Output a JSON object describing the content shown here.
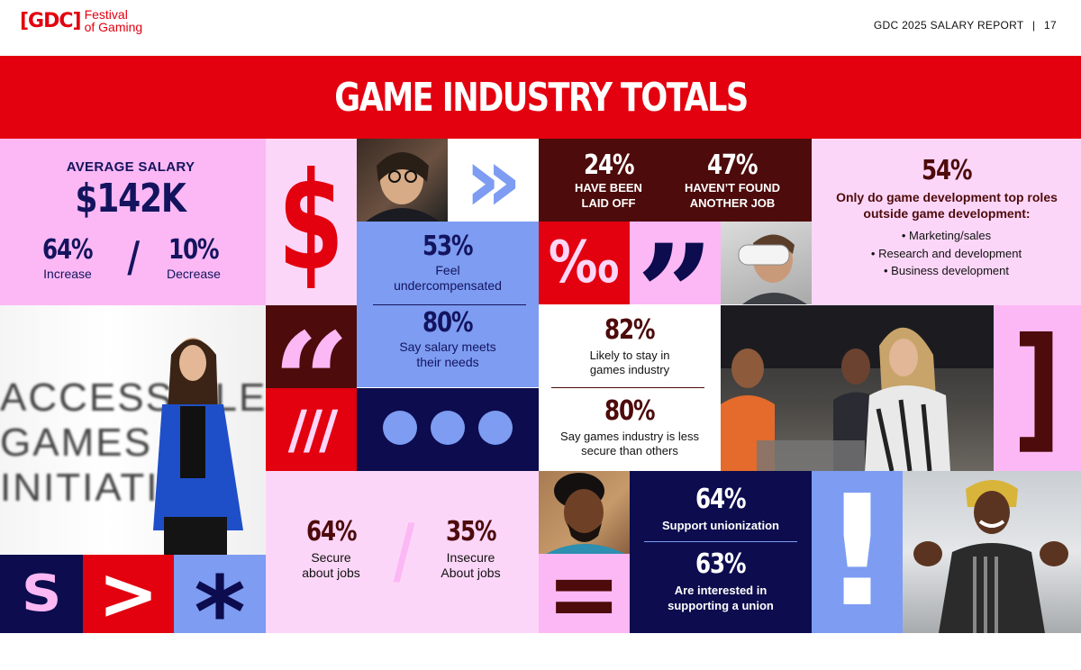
{
  "header": {
    "logo_mark": "[GDC]",
    "logo_line1": "Festival",
    "logo_line2": "of Gaming",
    "report_title": "GDC 2025 SALARY REPORT",
    "separator": "|",
    "page_number": "17"
  },
  "banner": {
    "title": "GAME INDUSTRY TOTALS"
  },
  "salary": {
    "heading": "AVERAGE SALARY",
    "value": "$142K",
    "increase_value": "64%",
    "increase_label": "Increase",
    "slash": "/",
    "decrease_value": "10%",
    "decrease_label": "Decrease"
  },
  "glyphs": {
    "dollar": "$",
    "chevrons": "»",
    "per_mille": "‰",
    "close_quote": "”",
    "open_quote": "“",
    "triple_slash": "///",
    "close_bracket": "]",
    "exclamation": "!",
    "equals": "=",
    "gt": ">",
    "asterisk": "*",
    "tilde": "S"
  },
  "undercomp": {
    "value": "53%",
    "label": "Feel undercompensated"
  },
  "meets": {
    "value": "80%",
    "label": "Say salary meets their needs"
  },
  "laidoff": {
    "value": "24%",
    "label": "HAVE BEEN LAID OFF"
  },
  "notfound": {
    "value": "47%",
    "label": "HAVEN’T FOUND ANOTHER JOB"
  },
  "roles": {
    "value": "54%",
    "label": "Only do game development top roles outside game development:",
    "items": [
      "• Marketing/sales",
      "• Research and development",
      "• Business development"
    ]
  },
  "stay": {
    "value": "82%",
    "label": "Likely to stay in games industry"
  },
  "less_secure": {
    "value": "80%",
    "label": "Say games industry is less secure than others"
  },
  "jobs": {
    "secure_value": "64%",
    "secure_label": "Secure about jobs",
    "slash": "/",
    "insecure_value": "35%",
    "insecure_label": "Insecure About jobs"
  },
  "union": {
    "support_value": "64%",
    "support_label": "Support unionization",
    "interest_value": "63%",
    "interest_label": "Are interested in supporting a union"
  },
  "photo_sign": {
    "line1": "ACCESSIBLE",
    "line2": "GAMES",
    "line3": "INITIATIVE"
  },
  "colors": {
    "red": "#e3000f",
    "pink": "#fbb8f4",
    "light_pink": "#fcd6f8",
    "blue": "#7d9cf2",
    "navy": "#0c0c4e",
    "maroon": "#4d0b0b",
    "salary_text": "#14145e"
  }
}
